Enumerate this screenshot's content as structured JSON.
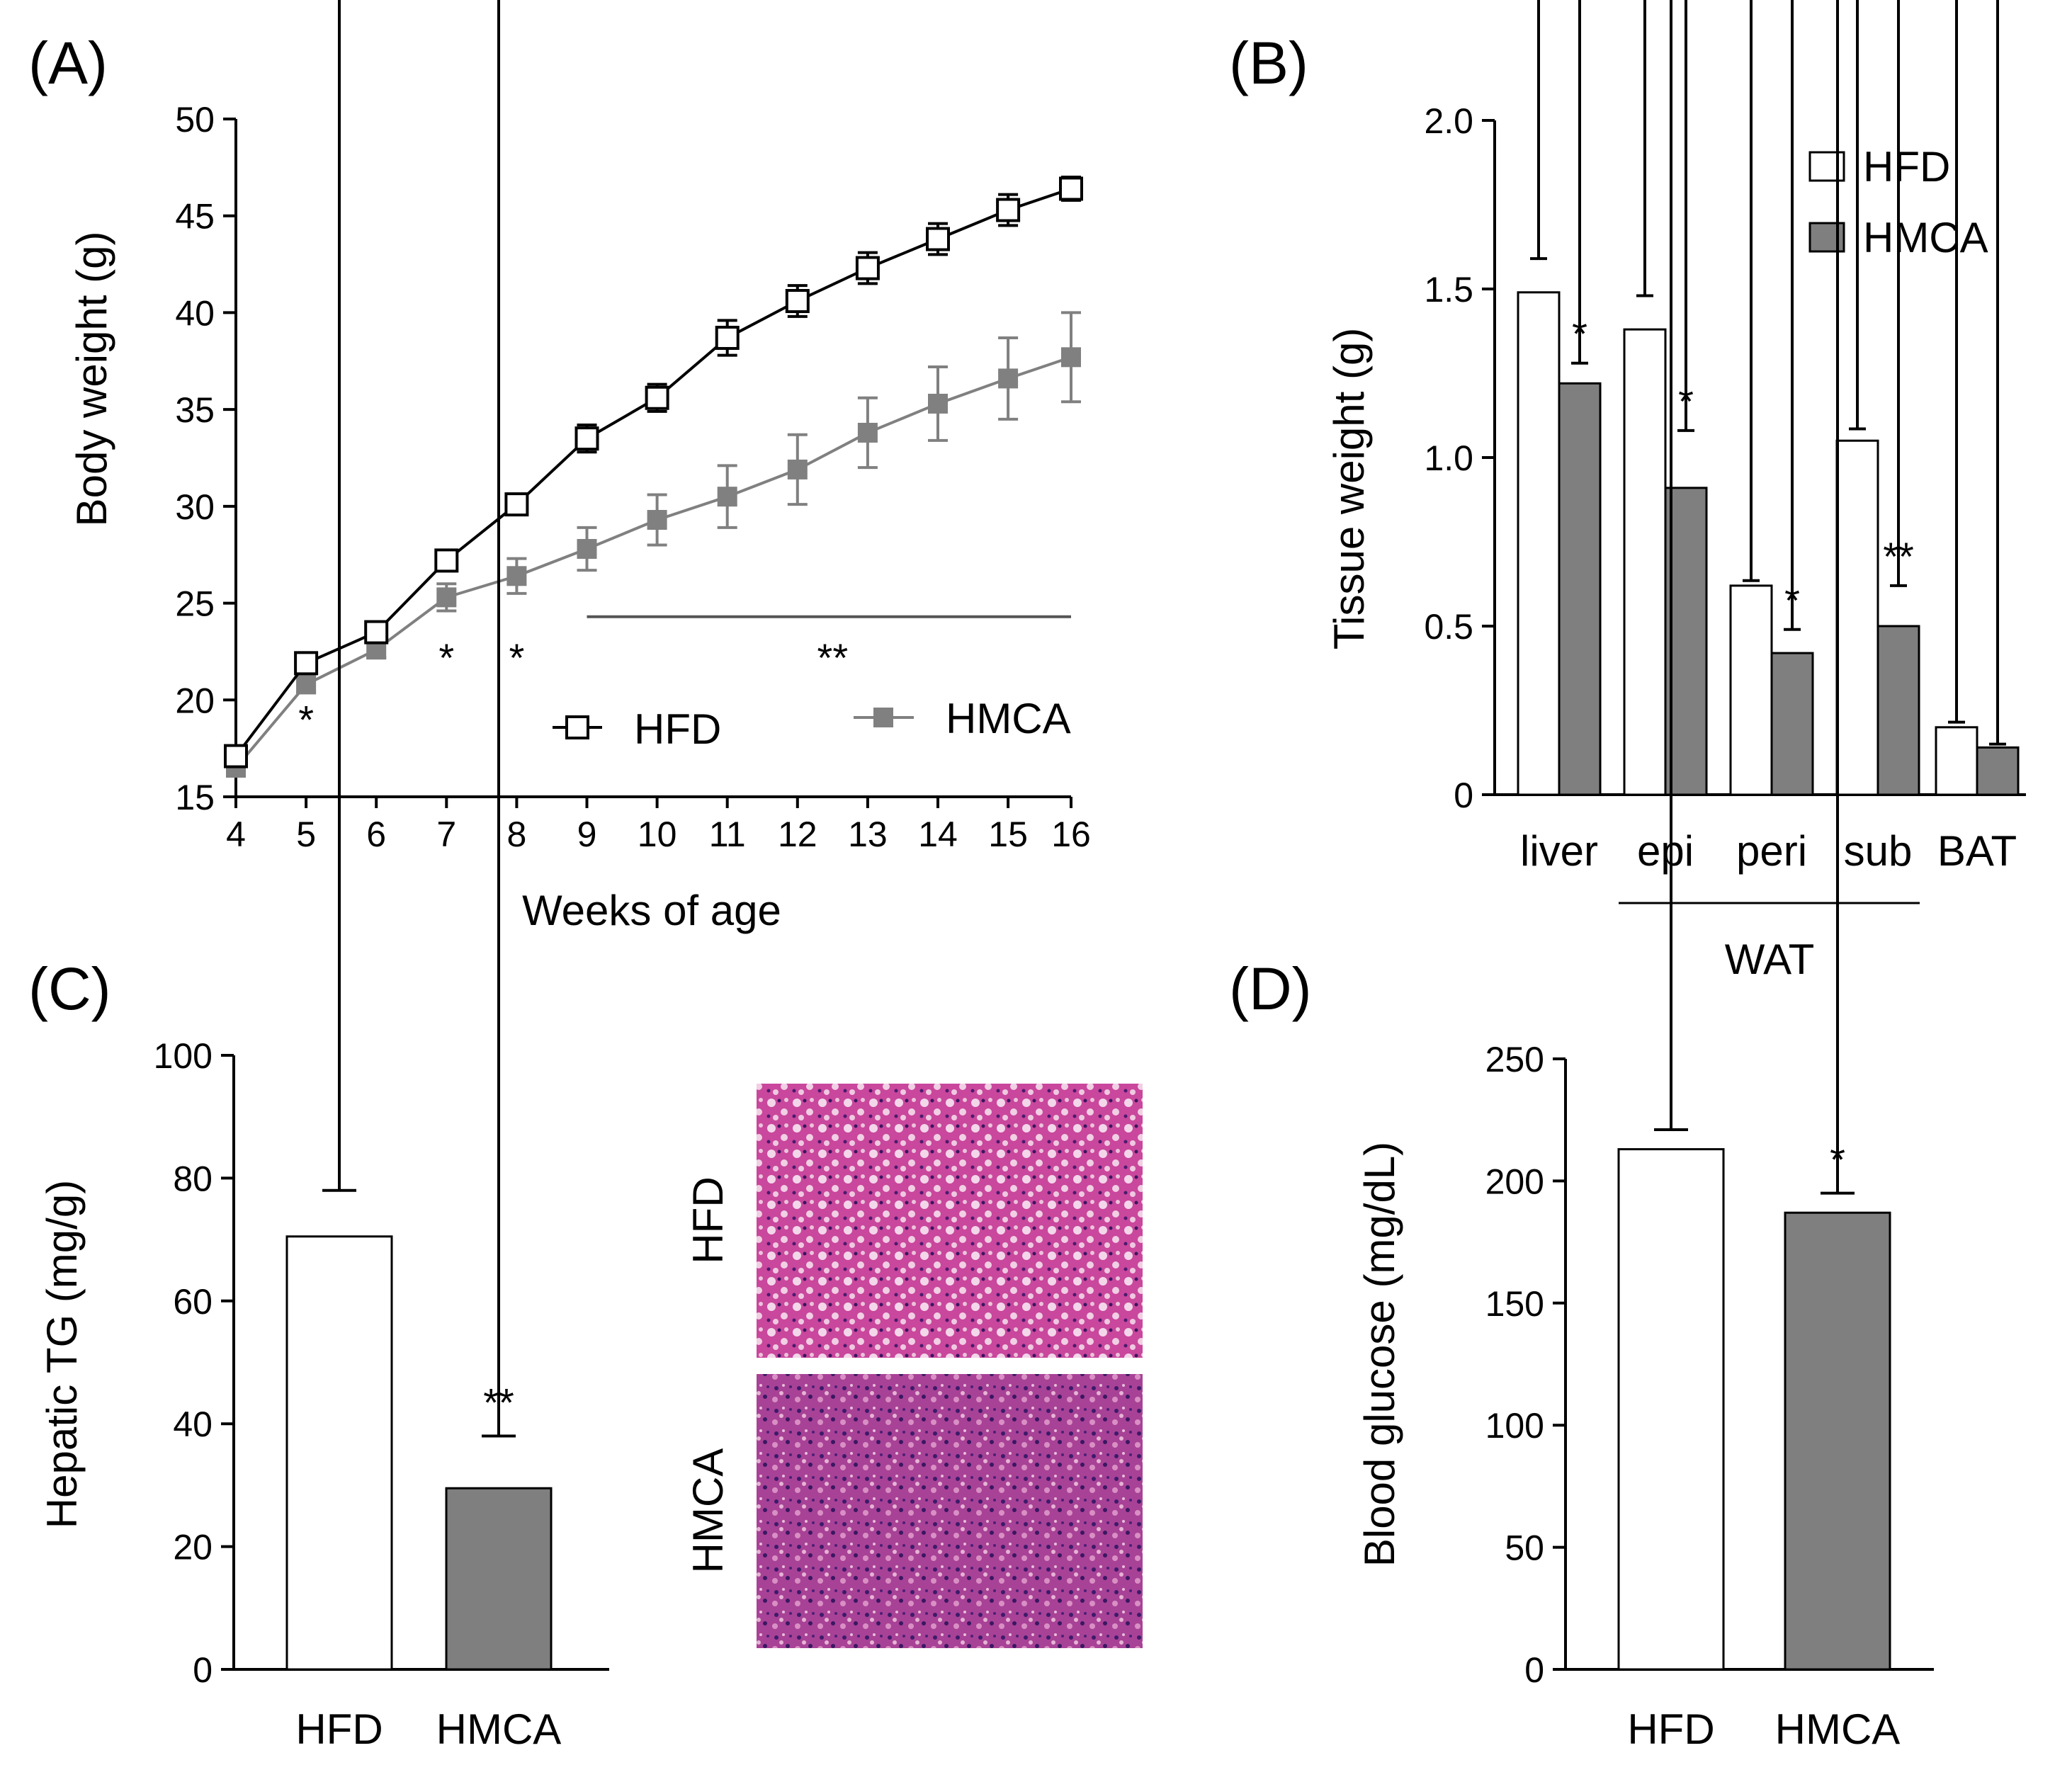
{
  "chart_data": [
    {
      "panel": "(A)",
      "type": "line",
      "xlabel": "Weeks of age",
      "ylabel": "Body weight (g)",
      "ylim": [
        15,
        50
      ],
      "yticks": [
        15,
        20,
        25,
        30,
        35,
        40,
        45,
        50
      ],
      "x": [
        4,
        5,
        6,
        7,
        8,
        9,
        10,
        11,
        12,
        13,
        14,
        15,
        16
      ],
      "series": [
        {
          "name": "HFD",
          "color": "#000000",
          "marker": "open-square",
          "values": [
            17.1,
            21.9,
            23.5,
            27.2,
            30.1,
            33.5,
            35.6,
            38.7,
            40.6,
            42.3,
            43.8,
            45.3,
            46.4
          ],
          "errors": [
            0.4,
            0.5,
            0.4,
            0.4,
            0.5,
            0.7,
            0.7,
            0.9,
            0.8,
            0.8,
            0.8,
            0.8,
            0.6
          ]
        },
        {
          "name": "HMCA",
          "color": "#808080",
          "marker": "filled-square",
          "values": [
            16.5,
            20.8,
            22.6,
            25.3,
            26.4,
            27.8,
            29.3,
            30.5,
            31.9,
            33.8,
            35.3,
            36.6,
            37.7
          ],
          "errors": [
            0.4,
            0.4,
            0.4,
            0.7,
            0.9,
            1.1,
            1.3,
            1.6,
            1.8,
            1.8,
            1.9,
            2.1,
            2.3
          ]
        }
      ],
      "annotations": [
        {
          "text": "*",
          "x": 5,
          "y": 19.0
        },
        {
          "text": "*",
          "x": 7,
          "y": 22.2
        },
        {
          "text": "*",
          "x": 8,
          "y": 22.2
        },
        {
          "text": "**",
          "x": 12.5,
          "y": 22.2
        }
      ],
      "significance_bar": {
        "x_start": 9,
        "x_end": 16,
        "y": 24.3
      }
    },
    {
      "panel": "(B)",
      "type": "bar",
      "xlabel": "",
      "ylabel": "Tissue weight (g)",
      "ylim": [
        0,
        2.0
      ],
      "yticks": [
        "0",
        "0.5",
        "1.0",
        "1.5",
        "2.0"
      ],
      "categories": [
        "liver",
        "epi",
        "peri",
        "sub",
        "BAT"
      ],
      "group_label": "WAT",
      "series": [
        {
          "name": "HFD",
          "color": "#ffffff",
          "values": [
            1.49,
            1.38,
            0.62,
            1.05,
            0.2
          ],
          "errors": [
            0.1,
            0.1,
            0.015,
            0.035,
            0.015
          ]
        },
        {
          "name": "HMCA",
          "color": "#7f7f7f",
          "values": [
            1.22,
            0.91,
            0.42,
            0.5,
            0.14
          ],
          "errors": [
            0.06,
            0.17,
            0.07,
            0.12,
            0.01
          ]
        }
      ],
      "annotations": [
        "*",
        "*",
        "*",
        "**",
        ""
      ]
    },
    {
      "panel": "(C)",
      "type": "bar",
      "xlabel": "",
      "ylabel": "Hepatic TG (mg/g)",
      "ylim": [
        0,
        100
      ],
      "yticks": [
        0,
        20,
        40,
        60,
        80,
        100
      ],
      "categories": [
        "HFD",
        "HMCA"
      ],
      "values": [
        70.5,
        29.5
      ],
      "errors": [
        7.5,
        8.5
      ],
      "colors": [
        "#ffffff",
        "#7f7f7f"
      ],
      "annotations": [
        "",
        "**"
      ],
      "histology_labels": [
        "HFD",
        "HMCA"
      ]
    },
    {
      "panel": "(D)",
      "type": "bar",
      "xlabel": "",
      "ylabel": "Blood glucose (mg/dL)",
      "ylim": [
        0,
        250
      ],
      "yticks": [
        0,
        50,
        100,
        150,
        200,
        250
      ],
      "categories": [
        "HFD",
        "HMCA"
      ],
      "values": [
        213,
        187
      ],
      "errors": [
        8,
        8
      ],
      "colors": [
        "#ffffff",
        "#7f7f7f"
      ],
      "annotations": [
        "",
        "*"
      ]
    }
  ]
}
